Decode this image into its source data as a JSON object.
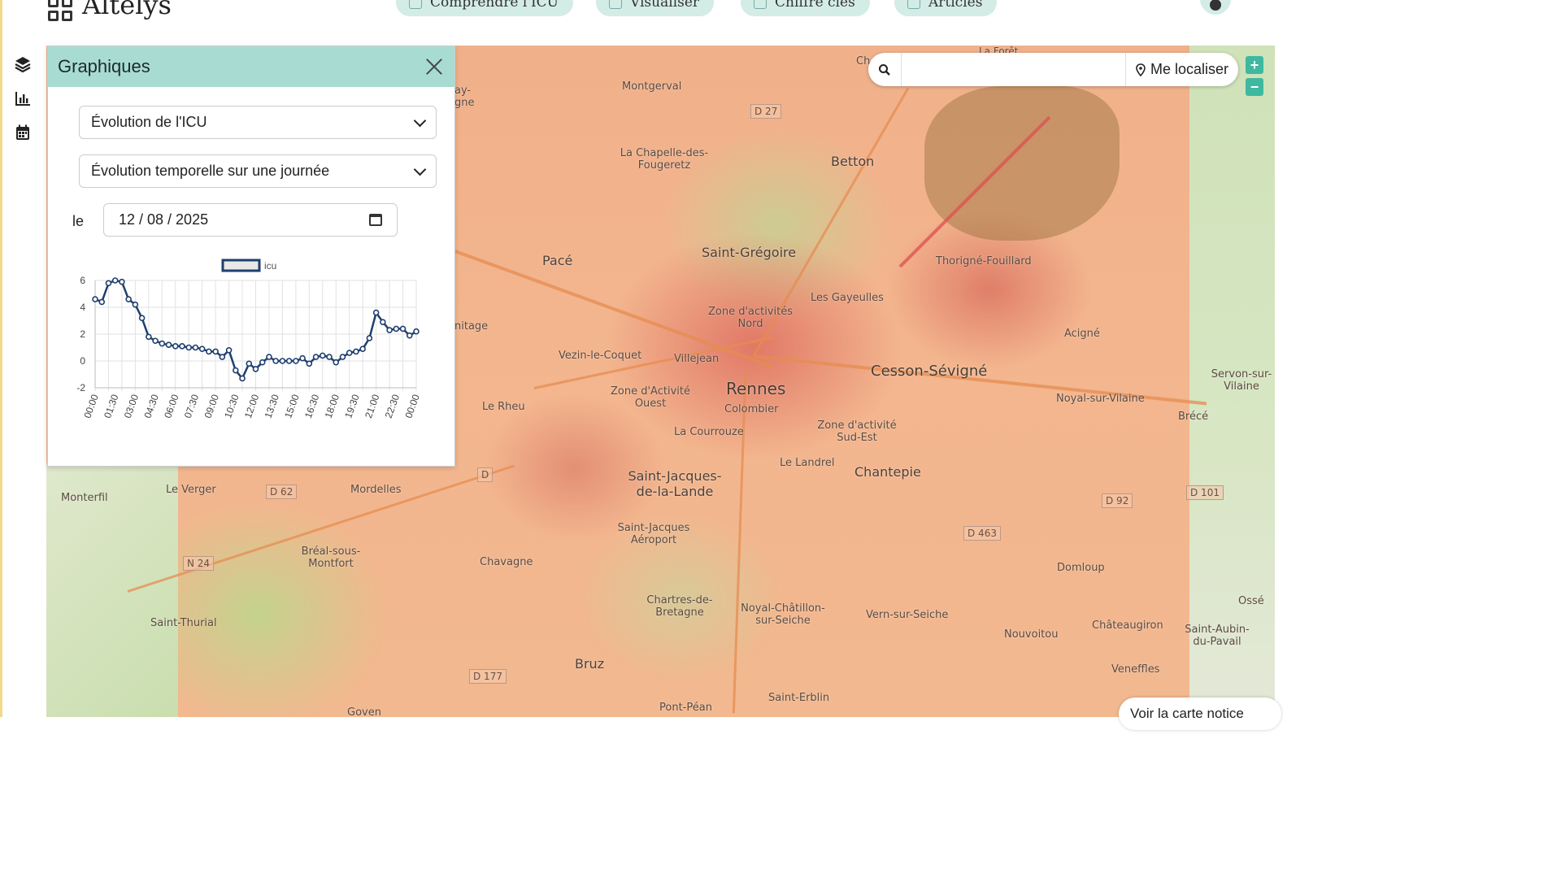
{
  "app": {
    "name": "Altelys"
  },
  "nav": [
    {
      "label": "Comprendre l'ICU"
    },
    {
      "label": "Visualiser"
    },
    {
      "label": "Chiffre clés"
    },
    {
      "label": "Articles"
    }
  ],
  "search": {
    "placeholder": "",
    "value": "",
    "locate_label": "Me localiser"
  },
  "zoom": {
    "in": "+",
    "out": "−"
  },
  "notice_button": "Voir la carte notice",
  "panel": {
    "title": "Graphiques",
    "select_indicator": "Évolution de l'ICU",
    "select_mode": "Évolution temporelle sur une journée",
    "date_label": "le",
    "date_value": "12 / 08 / 2025"
  },
  "map_labels": {
    "places": [
      "Montgerval",
      "La Chapelle-des-Fougeretz",
      "Betton",
      "Saint-Grégoire",
      "Pacé",
      "Thorigné-Fouillard",
      "Les Gayeulles",
      "Zone d'activités Nord",
      "Vezin-le-Coquet",
      "Villejean",
      "Acigné",
      "Rennes",
      "Cesson-Sévigné",
      "Zone d'Activité Ouest",
      "Colombier",
      "Le Rheu",
      "Noyal-sur-Vilaine",
      "Servon-sur-Vilaine",
      "Brécé",
      "Zone d'activité Sud-Est",
      "La Courrouze",
      "Le Landrel",
      "Chantepie",
      "Saint-Jacques-de-la-Lande",
      "Le Verger",
      "Mordelles",
      "Monterfil",
      "Saint-Jacques Aéroport",
      "Bréal-sous-Montfort",
      "Chavagne",
      "Domloup",
      "Chartres-de-Bretagne",
      "Noyal-Châtillon-sur-Seiche",
      "Vern-sur-Seiche",
      "Saint-Thurial",
      "Nouvoitou",
      "Châteaugiron",
      "Saint-Aubin-du-Pavail",
      "Ossé",
      "Bruz",
      "Veneffles",
      "Saint-Erblin",
      "Pont-Péan",
      "Goven",
      "La Forêt",
      "nitage",
      "ay-gne",
      "Ch"
    ],
    "roads": [
      "D 27",
      "D 62",
      "N 24",
      "D 177",
      "D 463",
      "D 92",
      "D 101",
      "D"
    ]
  },
  "chart_data": {
    "type": "line",
    "legend": [
      "icu"
    ],
    "legend_position": "top",
    "grid": true,
    "ylim": [
      -2,
      6
    ],
    "yticks": [
      -2,
      0,
      2,
      4,
      6
    ],
    "xticks": [
      "00:00",
      "01:30",
      "03:00",
      "04:30",
      "06:00",
      "07:30",
      "09:00",
      "10:30",
      "12:00",
      "13:30",
      "15:00",
      "16:30",
      "18:00",
      "19:30",
      "21:00",
      "22:30",
      "00:00"
    ],
    "series": [
      {
        "name": "icu",
        "color": "#1f3f6e",
        "values": [
          4.6,
          4.4,
          5.8,
          6.0,
          5.9,
          4.6,
          4.2,
          3.2,
          1.8,
          1.5,
          1.3,
          1.2,
          1.1,
          1.1,
          1.0,
          1.0,
          0.9,
          0.7,
          0.7,
          0.3,
          0.8,
          -0.7,
          -1.3,
          -0.2,
          -0.6,
          -0.1,
          0.3,
          0.0,
          0.0,
          0.0,
          0.0,
          0.2,
          -0.2,
          0.3,
          0.4,
          0.3,
          -0.1,
          0.3,
          0.6,
          0.7,
          0.9,
          1.7,
          3.6,
          2.9,
          2.3,
          2.4,
          2.4,
          1.9,
          2.2
        ]
      }
    ]
  },
  "colors": {
    "accent": "#a8dcd2",
    "nav_bg": "#d4ece6",
    "zoom": "#3fb8a0",
    "series": "#1f3f6e"
  }
}
